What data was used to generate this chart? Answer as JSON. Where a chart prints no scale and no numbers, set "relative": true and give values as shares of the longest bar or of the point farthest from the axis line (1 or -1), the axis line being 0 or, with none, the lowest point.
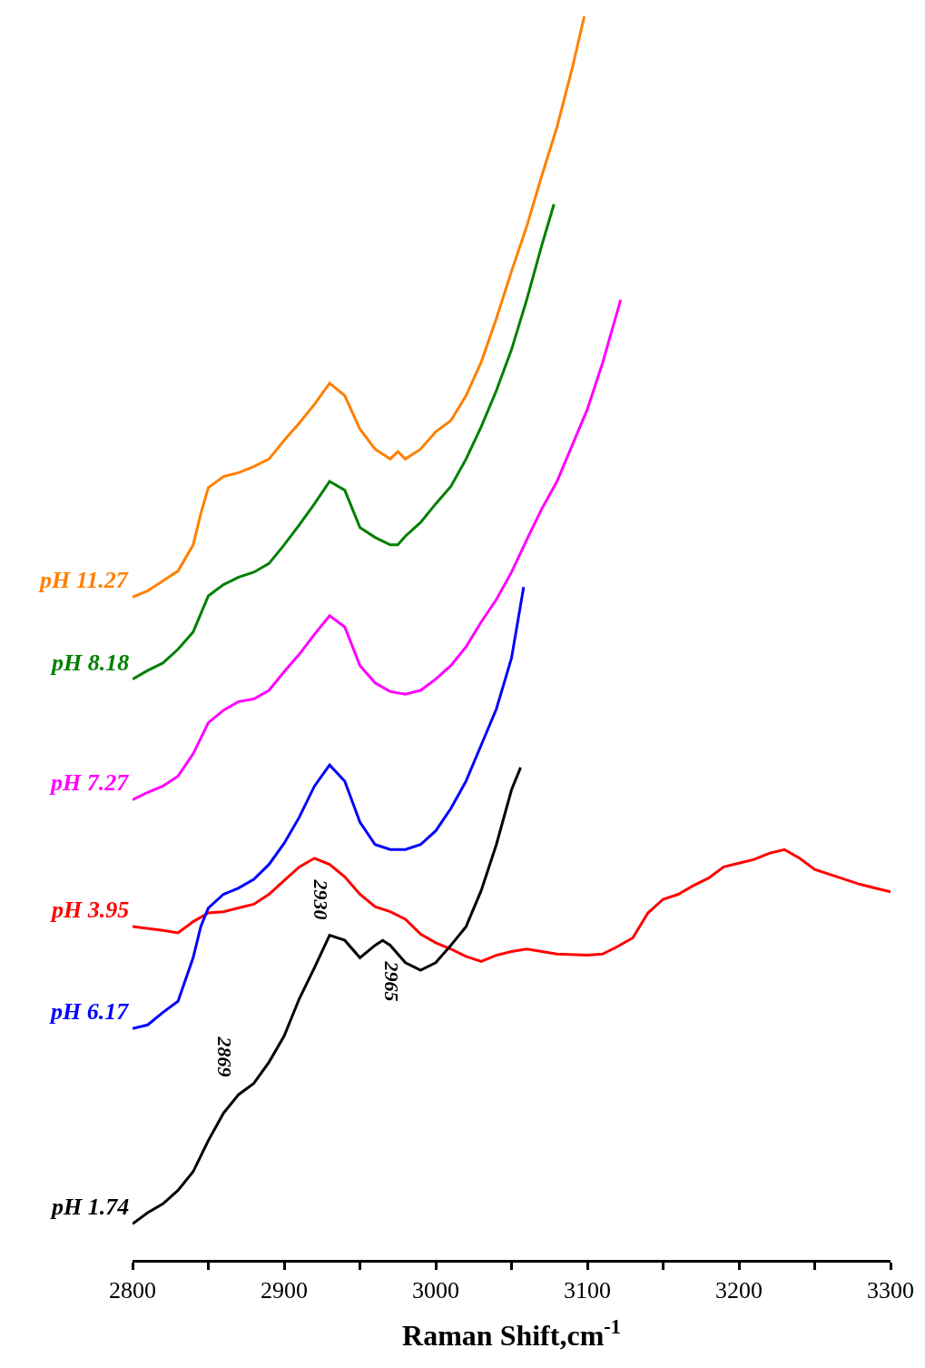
{
  "chart_data": {
    "type": "line",
    "relative": true,
    "xlabel": "Raman Shift,cm$^{-1}$",
    "xlim": [
      2800,
      3300
    ],
    "xticks": [
      2800,
      {
        "value": 2850,
        "label": null
      },
      2900,
      {
        "value": 2950,
        "label": null
      },
      3000,
      {
        "value": 3050,
        "label": null
      },
      3100,
      {
        "value": 3150,
        "label": null
      },
      3200,
      {
        "value": 3250,
        "label": null
      },
      3300
    ],
    "legend": false,
    "marker": "none",
    "line_style": "solid",
    "tick_labels": "x",
    "series": [
      {
        "name": "pH 11.27",
        "color": "#ff8000",
        "x": [
          2800,
          2810,
          2820,
          2830,
          2840,
          2845,
          2850,
          2860,
          2870,
          2880,
          2890,
          2900,
          2910,
          2920,
          2930,
          2940,
          2950,
          2960,
          2970,
          2975,
          2980,
          2990,
          3000,
          3010,
          3020,
          3030,
          3040,
          3050,
          3060,
          3070,
          3080,
          3090,
          3098
        ],
        "values": [
          0.533,
          0.538,
          0.546,
          0.554,
          0.575,
          0.6,
          0.621,
          0.63,
          0.633,
          0.638,
          0.644,
          0.659,
          0.673,
          0.688,
          0.705,
          0.695,
          0.668,
          0.652,
          0.644,
          0.65,
          0.644,
          0.652,
          0.666,
          0.675,
          0.695,
          0.722,
          0.757,
          0.795,
          0.831,
          0.872,
          0.911,
          0.958,
          1.0
        ]
      },
      {
        "name": "pH 8.18",
        "color": "#008000",
        "x": [
          2800,
          2810,
          2820,
          2830,
          2840,
          2850,
          2860,
          2870,
          2880,
          2890,
          2900,
          2910,
          2920,
          2930,
          2940,
          2950,
          2960,
          2970,
          2975,
          2980,
          2990,
          3000,
          3010,
          3020,
          3030,
          3040,
          3050,
          3060,
          3070,
          3078
        ],
        "values": [
          0.467,
          0.474,
          0.48,
          0.491,
          0.505,
          0.534,
          0.543,
          0.549,
          0.553,
          0.56,
          0.575,
          0.591,
          0.608,
          0.626,
          0.619,
          0.589,
          0.581,
          0.575,
          0.575,
          0.582,
          0.593,
          0.608,
          0.622,
          0.644,
          0.67,
          0.699,
          0.732,
          0.772,
          0.816,
          0.849
        ]
      },
      {
        "name": "pH 7.27",
        "color": "#ff00ff",
        "x": [
          2800,
          2810,
          2820,
          2830,
          2840,
          2850,
          2860,
          2870,
          2880,
          2890,
          2900,
          2910,
          2920,
          2930,
          2940,
          2950,
          2960,
          2970,
          2980,
          2990,
          3000,
          3010,
          3020,
          3030,
          3040,
          3050,
          3060,
          3070,
          3080,
          3090,
          3100,
          3110,
          3122
        ],
        "values": [
          0.37,
          0.376,
          0.381,
          0.389,
          0.407,
          0.432,
          0.442,
          0.449,
          0.451,
          0.458,
          0.473,
          0.487,
          0.503,
          0.518,
          0.509,
          0.478,
          0.464,
          0.457,
          0.455,
          0.458,
          0.467,
          0.478,
          0.493,
          0.513,
          0.531,
          0.553,
          0.579,
          0.604,
          0.626,
          0.655,
          0.684,
          0.721,
          0.772
        ]
      },
      {
        "name": "pH 3.95",
        "color": "#ff0000",
        "x": [
          2800,
          2820,
          2830,
          2840,
          2850,
          2860,
          2870,
          2880,
          2890,
          2900,
          2910,
          2920,
          2930,
          2940,
          2950,
          2960,
          2970,
          2980,
          2990,
          3000,
          3010,
          3020,
          3030,
          3040,
          3050,
          3060,
          3080,
          3100,
          3110,
          3120,
          3130,
          3140,
          3150,
          3160,
          3170,
          3180,
          3190,
          3200,
          3210,
          3220,
          3230,
          3240,
          3250,
          3260,
          3270,
          3280,
          3290,
          3300
        ],
        "values": [
          0.268,
          0.265,
          0.263,
          0.272,
          0.279,
          0.28,
          0.283,
          0.286,
          0.294,
          0.305,
          0.316,
          0.323,
          0.318,
          0.308,
          0.294,
          0.284,
          0.28,
          0.274,
          0.262,
          0.255,
          0.25,
          0.244,
          0.24,
          0.245,
          0.248,
          0.25,
          0.246,
          0.245,
          0.246,
          0.252,
          0.259,
          0.279,
          0.29,
          0.294,
          0.301,
          0.307,
          0.316,
          0.319,
          0.322,
          0.327,
          0.33,
          0.323,
          0.314,
          0.31,
          0.306,
          0.302,
          0.299,
          0.296
        ]
      },
      {
        "name": "pH 6.17",
        "color": "#0000ff",
        "x": [
          2800,
          2810,
          2820,
          2830,
          2840,
          2845,
          2850,
          2860,
          2870,
          2880,
          2890,
          2900,
          2910,
          2920,
          2930,
          2940,
          2950,
          2960,
          2970,
          2980,
          2990,
          3000,
          3010,
          3020,
          3030,
          3040,
          3050,
          3058
        ],
        "values": [
          0.186,
          0.189,
          0.199,
          0.208,
          0.243,
          0.268,
          0.283,
          0.294,
          0.299,
          0.306,
          0.318,
          0.335,
          0.356,
          0.381,
          0.398,
          0.385,
          0.352,
          0.334,
          0.33,
          0.33,
          0.334,
          0.345,
          0.363,
          0.385,
          0.414,
          0.443,
          0.484,
          0.541
        ]
      },
      {
        "name": "pH 1.74",
        "color": "#000000",
        "x": [
          2800,
          2810,
          2820,
          2830,
          2840,
          2850,
          2860,
          2870,
          2880,
          2890,
          2900,
          2910,
          2920,
          2930,
          2940,
          2950,
          2960,
          2965,
          2970,
          2980,
          2990,
          3000,
          3010,
          3020,
          3030,
          3040,
          3050,
          3056
        ],
        "values": [
          0.029,
          0.038,
          0.045,
          0.056,
          0.071,
          0.096,
          0.118,
          0.133,
          0.142,
          0.159,
          0.18,
          0.21,
          0.235,
          0.261,
          0.257,
          0.243,
          0.253,
          0.257,
          0.253,
          0.239,
          0.233,
          0.239,
          0.253,
          0.268,
          0.297,
          0.334,
          0.378,
          0.396
        ]
      }
    ],
    "annotations": [
      {
        "text": "2869",
        "x": 2869,
        "y": 0.131
      },
      {
        "text": "2930",
        "x": 2930,
        "y": 0.261
      },
      {
        "text": "2965",
        "x": 2965,
        "y": 0.257
      }
    ]
  }
}
